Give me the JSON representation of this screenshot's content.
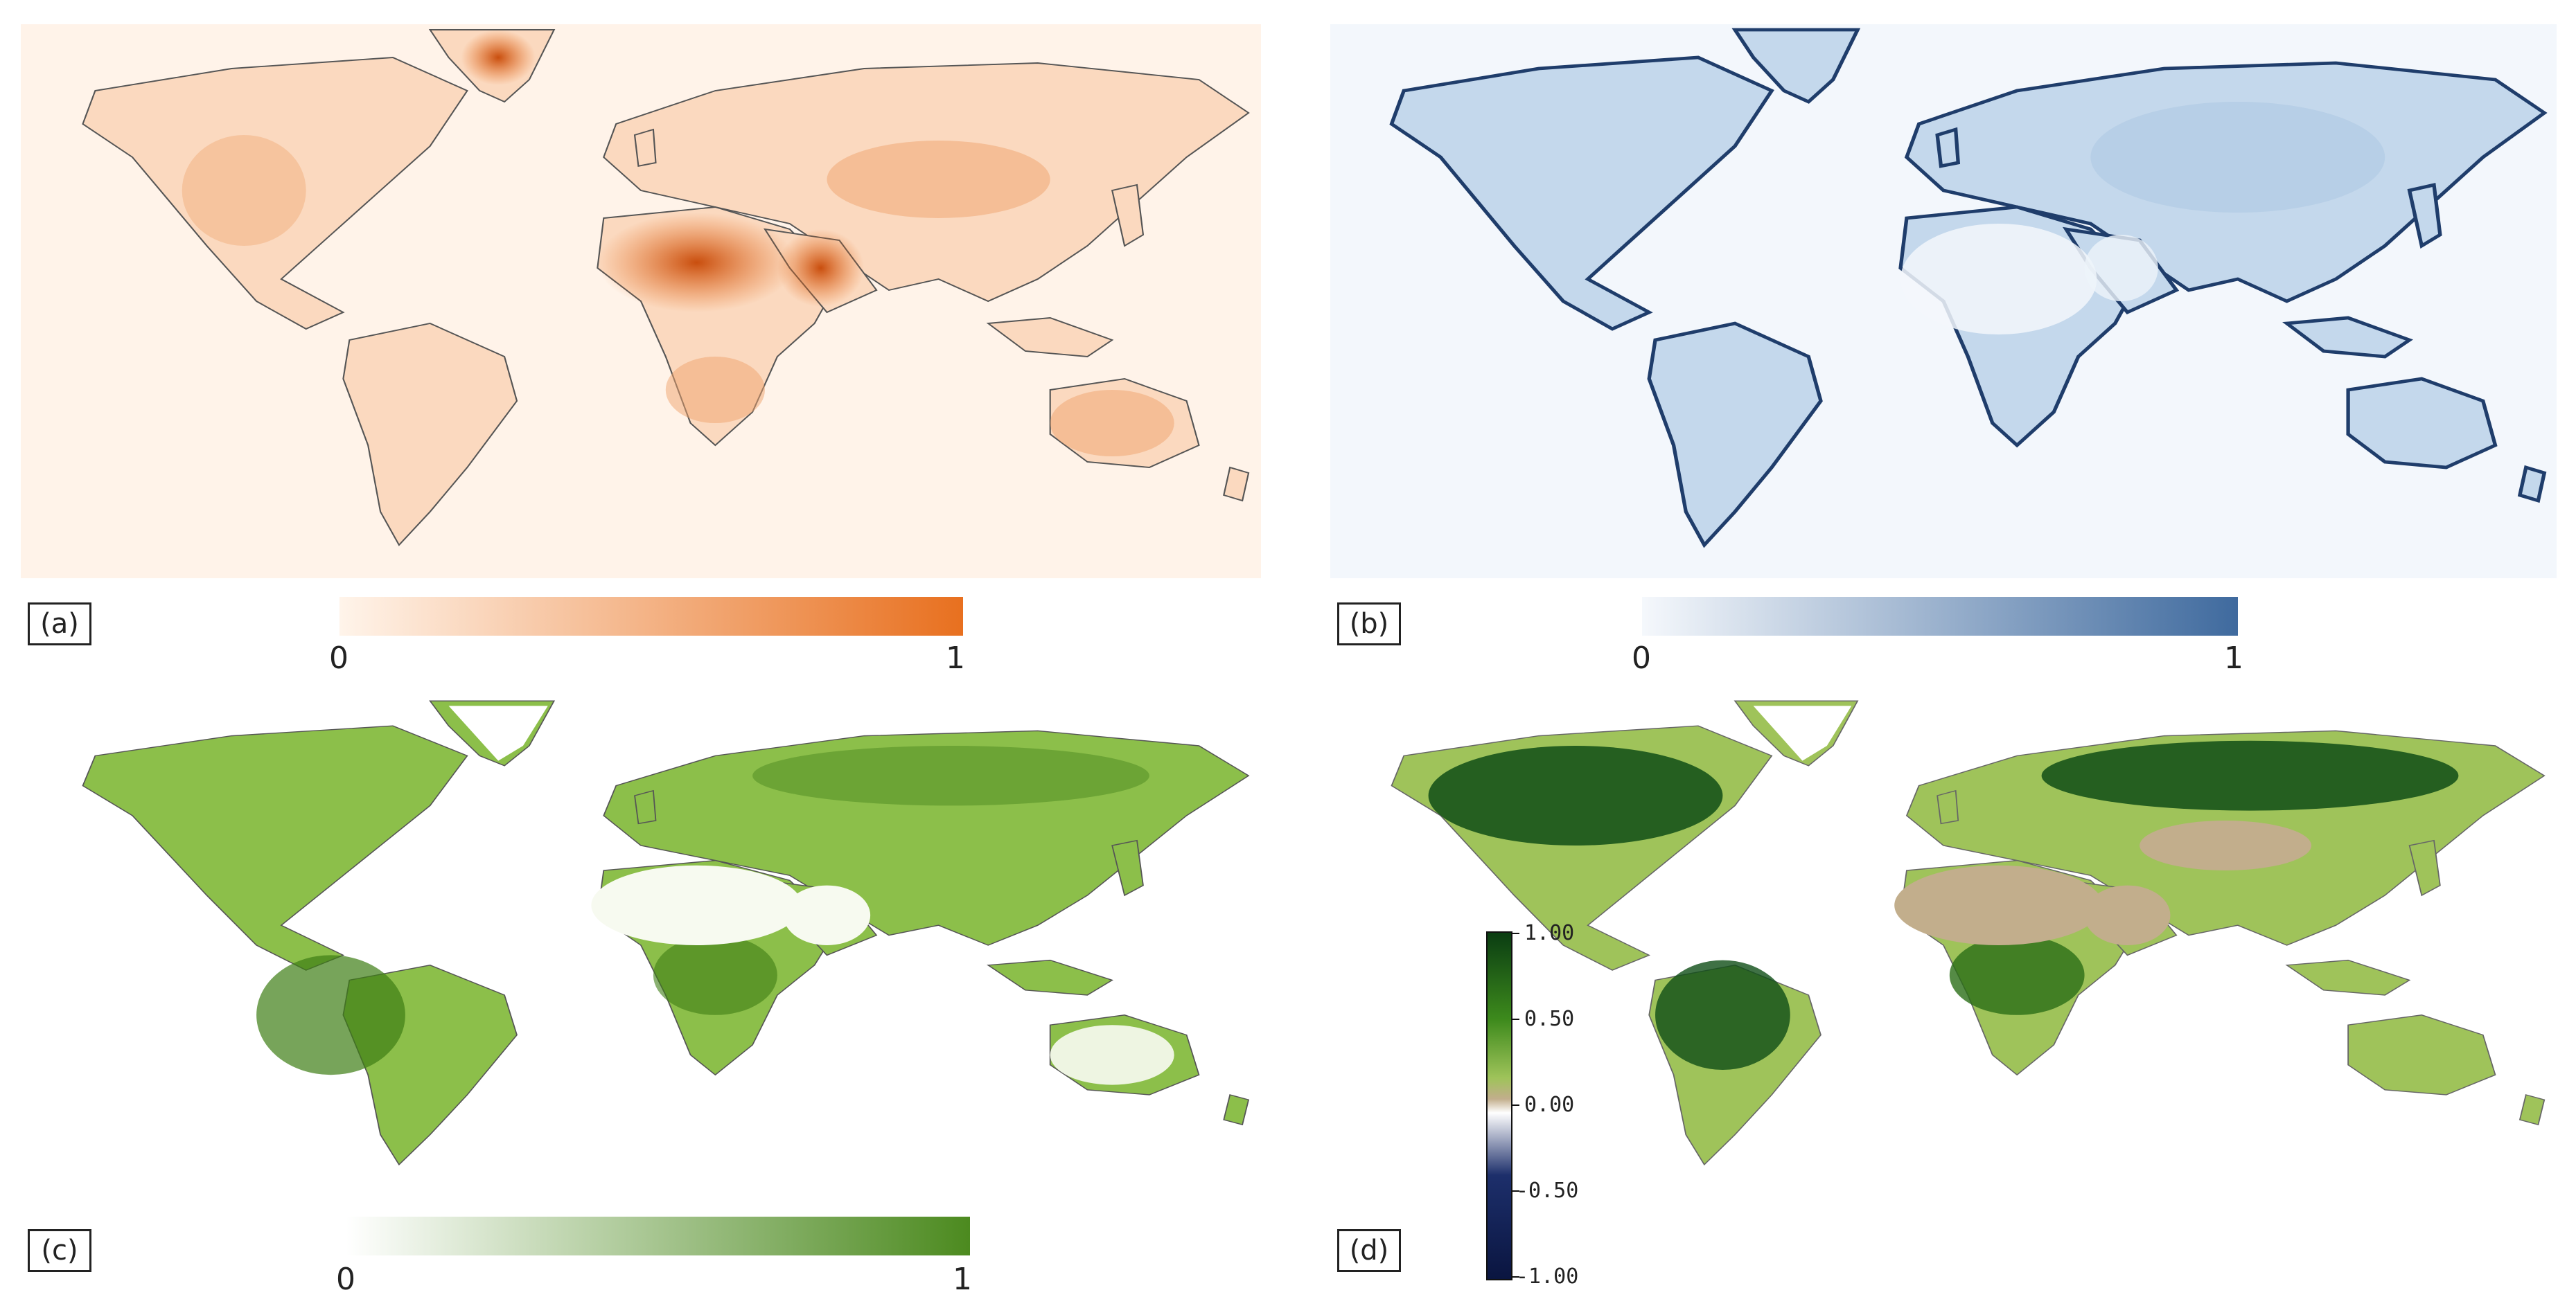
{
  "panels": [
    {
      "id": "a",
      "label": "(a)",
      "colorbar": {
        "min": "0",
        "max": "1",
        "colors": [
          "#fff4ea",
          "#e8701f"
        ]
      }
    },
    {
      "id": "b",
      "label": "(b)",
      "colorbar": {
        "min": "0",
        "max": "1",
        "colors": [
          "#f5f8fc",
          "#3f6a9e"
        ]
      }
    },
    {
      "id": "c",
      "label": "(c)",
      "colorbar": {
        "min": "0",
        "max": "1",
        "colors": [
          "#ffffff",
          "#4c8a1f"
        ]
      }
    },
    {
      "id": "d",
      "label": "(d)",
      "colorbar": {
        "ticks": [
          "1.00",
          "0.50",
          "0.00",
          "-0.50",
          "-1.00"
        ],
        "colors": [
          "#0a3d12",
          "#3d8a1c",
          "#9fc35a",
          "#c2ae8c",
          "#ffffff",
          "#1d2f6b",
          "#0a1540"
        ]
      }
    }
  ],
  "colors": {
    "land_outline": "#333333",
    "ocean_a": "#fff3e9",
    "ocean_b": "#f3f7fc"
  }
}
